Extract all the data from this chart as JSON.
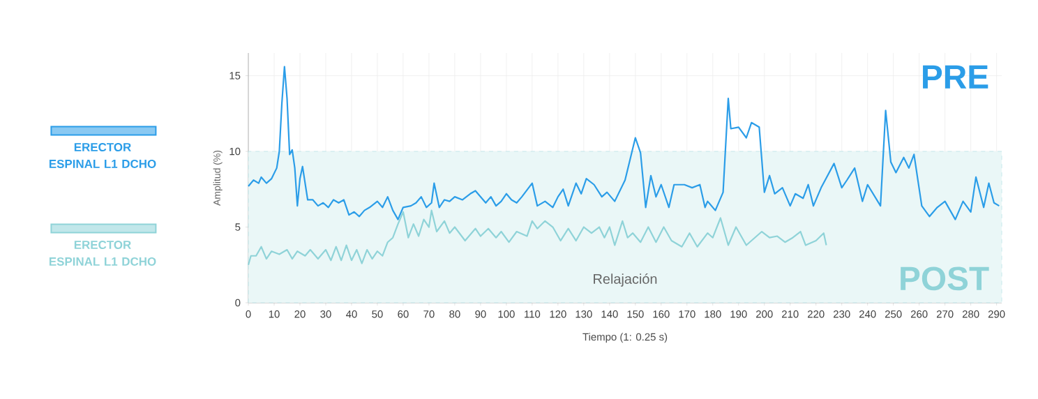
{
  "chart_data": {
    "type": "line",
    "xlabel": "Tiempo (1: 0.25 s)",
    "ylabel": "Amplitud (%)",
    "xlim": [
      0,
      292
    ],
    "ylim": [
      0,
      16.5
    ],
    "xticks": [
      0,
      10,
      20,
      30,
      40,
      50,
      60,
      70,
      80,
      90,
      100,
      110,
      120,
      130,
      140,
      150,
      160,
      170,
      180,
      190,
      200,
      210,
      220,
      230,
      240,
      250,
      260,
      270,
      280,
      290
    ],
    "yticks": [
      0,
      5,
      10,
      15
    ],
    "grid": true,
    "legend": "left",
    "marker": "none",
    "line_style": "solid",
    "bands": [
      {
        "axis": "y",
        "from": 0,
        "to": 10,
        "label": "Relajación",
        "color": "#eaf7f7"
      }
    ],
    "annotations": [
      "PRE",
      "POST"
    ],
    "series": [
      {
        "name": "ERECTOR ESPINAL L1 DCHO",
        "color": "#2b9de8",
        "x": [
          0,
          2,
          4,
          5,
          7,
          9,
          11,
          12,
          13,
          14,
          15,
          16,
          17,
          18,
          19,
          20,
          21,
          22,
          23,
          25,
          27,
          29,
          31,
          33,
          35,
          37,
          39,
          41,
          43,
          45,
          47,
          50,
          52,
          54,
          56,
          58,
          60,
          63,
          65,
          67,
          69,
          71,
          72,
          74,
          76,
          78,
          80,
          83,
          86,
          88,
          90,
          92,
          94,
          96,
          98,
          100,
          102,
          104,
          106,
          110,
          112,
          115,
          118,
          120,
          122,
          124,
          127,
          129,
          131,
          134,
          137,
          139,
          142,
          146,
          148,
          150,
          152,
          154,
          156,
          158,
          160,
          163,
          165,
          169,
          172,
          175,
          177,
          178,
          181,
          184,
          186,
          187,
          190,
          193,
          195,
          198,
          200,
          202,
          204,
          207,
          210,
          212,
          215,
          217,
          219,
          222,
          227,
          230,
          232,
          235,
          238,
          240,
          245,
          247,
          249,
          251,
          254,
          256,
          258,
          261,
          264,
          267,
          270,
          274,
          277,
          280,
          282,
          285,
          287,
          289,
          291
        ],
        "values": [
          7.7,
          8.1,
          7.9,
          8.3,
          7.9,
          8.2,
          8.9,
          10,
          13.2,
          15.6,
          13.5,
          9.8,
          10.1,
          8.9,
          6.4,
          8.2,
          9,
          7.9,
          6.8,
          6.8,
          6.4,
          6.6,
          6.3,
          6.8,
          6.6,
          6.8,
          5.8,
          6.0,
          5.7,
          6.1,
          6.3,
          6.7,
          6.3,
          7.0,
          6.1,
          5.5,
          6.3,
          6.4,
          6.6,
          7.0,
          6.3,
          6.6,
          7.9,
          6.3,
          6.8,
          6.7,
          7.0,
          6.8,
          7.2,
          7.4,
          7.0,
          6.6,
          7.0,
          6.4,
          6.7,
          7.2,
          6.8,
          6.6,
          7.0,
          7.9,
          6.4,
          6.7,
          6.3,
          7.0,
          7.5,
          6.4,
          7.9,
          7.2,
          8.2,
          7.8,
          7.0,
          7.3,
          6.7,
          8.1,
          9.5,
          10.9,
          9.9,
          6.3,
          8.4,
          7.0,
          7.8,
          6.3,
          7.8,
          7.8,
          7.6,
          7.8,
          6.3,
          6.7,
          6.1,
          7.3,
          13.5,
          11.5,
          11.6,
          10.9,
          11.9,
          11.6,
          7.3,
          8.4,
          7.2,
          7.6,
          6.4,
          7.2,
          6.9,
          7.8,
          6.4,
          7.6,
          9.2,
          7.6,
          8.1,
          8.9,
          6.7,
          7.8,
          6.4,
          12.7,
          9.3,
          8.6,
          9.6,
          8.9,
          9.8,
          6.4,
          5.7,
          6.3,
          6.7,
          5.5,
          6.7,
          6.0,
          8.3,
          6.3,
          7.9,
          6.6,
          6.4
        ]
      },
      {
        "name": "ERECTOR ESPINAL L1 DCHO",
        "color": "#8fd3d8",
        "x": [
          0,
          1,
          3,
          5,
          7,
          9,
          12,
          15,
          17,
          19,
          22,
          24,
          27,
          30,
          32,
          34,
          36,
          38,
          40,
          42,
          44,
          46,
          48,
          50,
          52,
          54,
          56,
          58,
          60,
          62,
          64,
          66,
          68,
          70,
          71,
          73,
          76,
          78,
          80,
          84,
          88,
          90,
          93,
          96,
          98,
          101,
          104,
          108,
          110,
          112,
          115,
          118,
          121,
          124,
          127,
          130,
          133,
          136,
          138,
          140,
          142,
          145,
          147,
          149,
          152,
          155,
          158,
          161,
          164,
          168,
          171,
          174,
          178,
          180,
          183,
          186,
          189,
          193,
          199,
          202,
          205,
          208,
          211,
          214,
          216,
          220,
          223,
          224
        ],
        "values": [
          2.5,
          3.1,
          3.1,
          3.7,
          2.9,
          3.4,
          3.2,
          3.5,
          2.9,
          3.4,
          3.1,
          3.5,
          2.9,
          3.5,
          2.8,
          3.7,
          2.8,
          3.8,
          2.8,
          3.5,
          2.6,
          3.5,
          2.9,
          3.4,
          3.1,
          4.0,
          4.3,
          5.2,
          6.0,
          4.3,
          5.2,
          4.4,
          5.5,
          5.0,
          6.1,
          4.7,
          5.4,
          4.6,
          5.0,
          4.1,
          4.9,
          4.4,
          4.9,
          4.3,
          4.7,
          4.0,
          4.7,
          4.4,
          5.4,
          4.9,
          5.4,
          5.0,
          4.1,
          4.9,
          4.1,
          5.0,
          4.6,
          5.0,
          4.3,
          5.0,
          3.8,
          5.4,
          4.3,
          4.6,
          4.0,
          5.0,
          4.0,
          5.0,
          4.1,
          3.7,
          4.6,
          3.7,
          4.6,
          4.3,
          5.6,
          3.8,
          5.0,
          3.8,
          4.7,
          4.3,
          4.4,
          4.0,
          4.3,
          4.7,
          3.8,
          4.1,
          4.6,
          3.8
        ]
      }
    ]
  }
}
